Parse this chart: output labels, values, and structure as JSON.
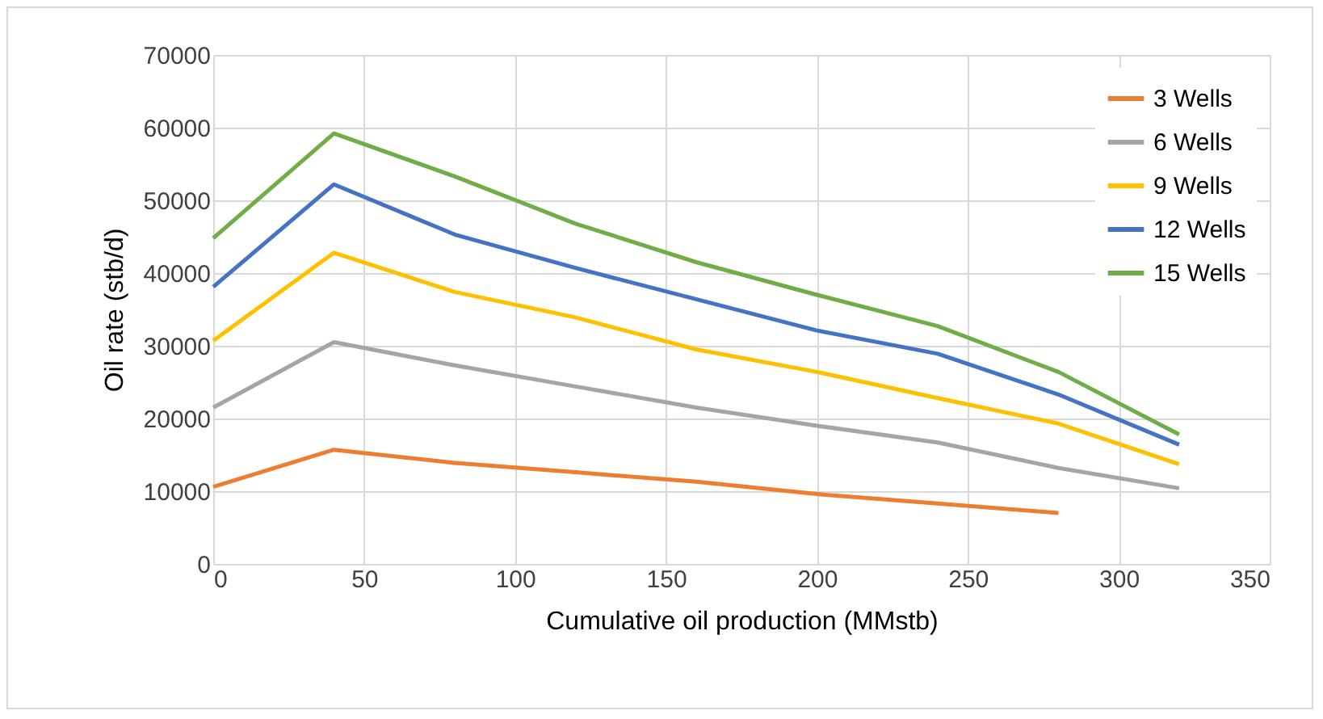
{
  "chart_data": {
    "type": "line",
    "xlabel": "Cumulative oil production (MMstb)",
    "ylabel": "Oil rate (stb/d)",
    "x": [
      0,
      40,
      80,
      120,
      160,
      200,
      240,
      280,
      320
    ],
    "series": [
      {
        "name": "3 Wells",
        "color": "#ed7d31",
        "values": [
          10600,
          15700,
          13900,
          12600,
          11300,
          9600,
          8300,
          7000,
          null
        ]
      },
      {
        "name": "6 Wells",
        "color": "#a5a5a5",
        "values": [
          21500,
          30500,
          27300,
          24400,
          21500,
          19000,
          16700,
          13200,
          10400
        ]
      },
      {
        "name": "9 Wells",
        "color": "#ffc000",
        "values": [
          30700,
          42800,
          37400,
          33900,
          29500,
          26400,
          22800,
          19300,
          13700
        ]
      },
      {
        "name": "12 Wells",
        "color": "#4472c4",
        "values": [
          38100,
          52200,
          45300,
          40700,
          36400,
          32100,
          28900,
          23300,
          16400
        ]
      },
      {
        "name": "15 Wells",
        "color": "#70ad47",
        "values": [
          44800,
          59200,
          53300,
          46800,
          41500,
          37000,
          32700,
          26400,
          17800
        ]
      }
    ],
    "xlim": [
      0,
      350
    ],
    "xticks": [
      0,
      50,
      100,
      150,
      200,
      250,
      300,
      350
    ],
    "ylim": [
      0,
      70000
    ],
    "yticks": [
      0,
      10000,
      20000,
      30000,
      40000,
      50000,
      60000,
      70000
    ],
    "grid": true,
    "legend": "top right",
    "marker": "none",
    "line_style": "solid"
  }
}
